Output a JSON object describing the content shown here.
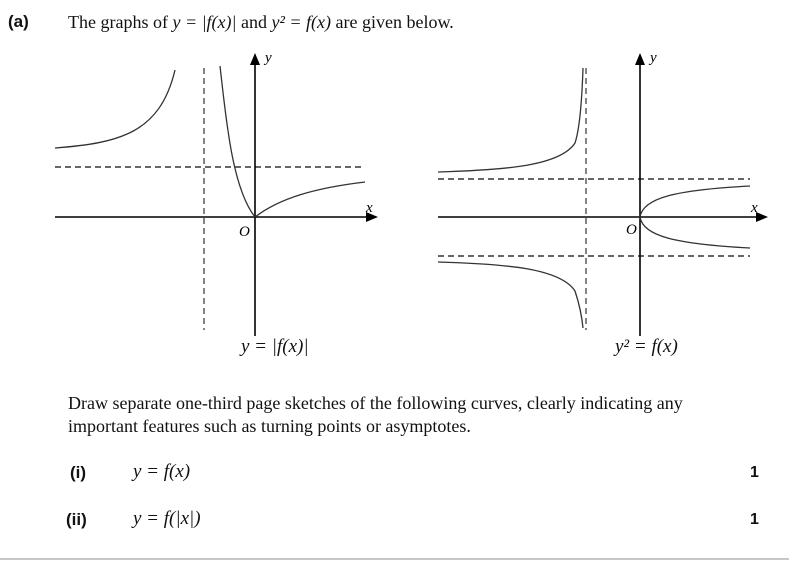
{
  "question": {
    "part_label": "(a)",
    "intro_before": "The graphs of ",
    "intro_eq1": "y = |f(x)|",
    "intro_mid": " and ",
    "intro_eq2": "y² = f(x)",
    "intro_after": " are given below."
  },
  "graph_left": {
    "y_axis_label": "y",
    "x_axis_label": "x",
    "origin_label": "O",
    "caption": "y = |f(x)|"
  },
  "graph_right": {
    "y_axis_label": "y",
    "x_axis_label": "x",
    "origin_label": "O",
    "caption": "y² = f(x)"
  },
  "instruction": "Draw separate one-third page sketches of the following curves, clearly indicating any important features such as turning points or asymptotes.",
  "subparts": [
    {
      "label": "(i)",
      "equation": "y = f(x)",
      "marks": "1"
    },
    {
      "label": "(ii)",
      "equation": "y = f(|x|)",
      "marks": "1"
    }
  ]
}
